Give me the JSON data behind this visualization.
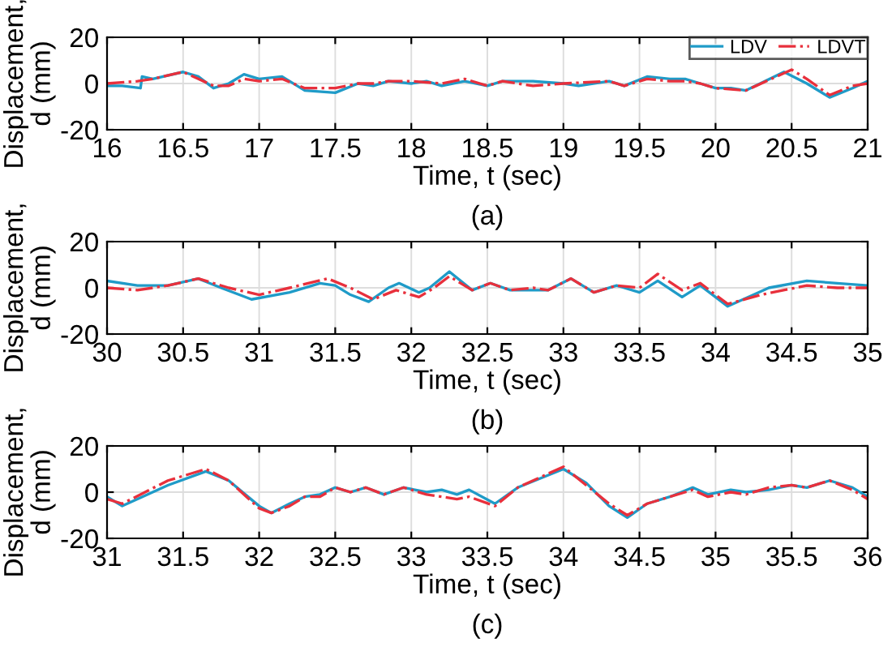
{
  "chart_data": [
    {
      "type": "line",
      "xlabel": "Time, t (sec)",
      "ylabel": "Displacement,\nd (mm)",
      "annotations": [
        "(a)"
      ],
      "xlim": [
        16,
        21
      ],
      "xticks": [
        16,
        16.5,
        17,
        17.5,
        18,
        18.5,
        19,
        19.5,
        20,
        20.5,
        21
      ],
      "ylim": [
        -20,
        20
      ],
      "yticks": [
        -20,
        0,
        20
      ],
      "grid": true,
      "legend": "top right",
      "series": [
        {
          "name": "LDV",
          "color": "#1f9bc8",
          "line_style": "solid",
          "x": [
            16,
            16.1,
            16.22,
            16.23,
            16.3,
            16.5,
            16.6,
            16.7,
            16.8,
            16.9,
            17.0,
            17.15,
            17.3,
            17.5,
            17.65,
            17.75,
            17.85,
            18.0,
            18.1,
            18.2,
            18.35,
            18.5,
            18.6,
            18.8,
            19.0,
            19.1,
            19.3,
            19.4,
            19.55,
            19.7,
            19.8,
            19.9,
            20.0,
            20.1,
            20.2,
            20.45,
            20.6,
            20.75,
            20.9,
            21
          ],
          "values": [
            -1,
            -1,
            -2,
            3,
            2,
            5,
            3,
            -2,
            0,
            4,
            2,
            3,
            -3,
            -4,
            0,
            -1,
            1,
            0,
            1,
            -1,
            1,
            -1,
            1,
            1,
            0,
            -1,
            1,
            -1,
            3,
            2,
            2,
            0,
            -2,
            -2,
            -3,
            5,
            0,
            -6,
            -2,
            1
          ]
        },
        {
          "name": "LDVT",
          "color": "#e8303c",
          "line_style": "dashdot",
          "x": [
            16,
            16.2,
            16.3,
            16.5,
            16.6,
            16.7,
            16.8,
            16.9,
            17.0,
            17.15,
            17.3,
            17.5,
            17.65,
            17.75,
            17.85,
            18.0,
            18.2,
            18.35,
            18.5,
            18.6,
            18.8,
            19.0,
            19.3,
            19.4,
            19.55,
            19.7,
            19.8,
            19.9,
            20.0,
            20.2,
            20.5,
            20.6,
            20.75,
            20.9,
            21
          ],
          "values": [
            0,
            1,
            2,
            5,
            2,
            -1,
            -1,
            2,
            1,
            2,
            -2,
            -2,
            0,
            0,
            1,
            1,
            0,
            2,
            -1,
            1,
            -1,
            0,
            1,
            -1,
            2,
            1,
            1,
            0,
            -2,
            -3,
            6,
            2,
            -5,
            -1,
            0
          ]
        }
      ]
    },
    {
      "type": "line",
      "xlabel": "Time, t (sec)",
      "ylabel": "Displacement,\nd (mm)",
      "annotations": [
        "(b)"
      ],
      "xlim": [
        30,
        35
      ],
      "xticks": [
        30,
        30.5,
        31,
        31.5,
        32,
        32.5,
        33,
        33.5,
        34,
        34.5,
        35
      ],
      "ylim": [
        -20,
        20
      ],
      "yticks": [
        -20,
        0,
        20
      ],
      "grid": true,
      "series": [
        {
          "color": "#1f9bc8",
          "line_style": "solid",
          "x": [
            30,
            30.2,
            30.4,
            30.6,
            30.75,
            30.95,
            31.2,
            31.4,
            31.5,
            31.6,
            31.72,
            31.85,
            31.92,
            32.05,
            32.12,
            32.25,
            32.4,
            32.52,
            32.65,
            32.8,
            32.9,
            33.05,
            33.2,
            33.35,
            33.5,
            33.62,
            33.78,
            33.9,
            34.08,
            34.25,
            34.35,
            34.6,
            34.8,
            35
          ],
          "values": [
            3,
            1,
            1,
            4,
            0,
            -5,
            -2,
            2,
            1,
            -3,
            -6,
            0,
            2,
            -2,
            0,
            7,
            -1,
            2,
            -1,
            -1,
            -1,
            4,
            -2,
            1,
            -2,
            3,
            -4,
            1,
            -8,
            -3,
            0,
            3,
            2,
            1
          ]
        },
        {
          "color": "#e8303c",
          "line_style": "dashdot",
          "x": [
            30,
            30.2,
            30.4,
            30.6,
            30.8,
            31.0,
            31.2,
            31.45,
            31.6,
            31.75,
            31.9,
            32.05,
            32.15,
            32.25,
            32.4,
            32.52,
            32.65,
            32.8,
            32.9,
            33.05,
            33.2,
            33.35,
            33.5,
            33.62,
            33.78,
            33.9,
            34.08,
            34.3,
            34.6,
            34.8,
            35
          ],
          "values": [
            0,
            -1,
            1,
            4,
            0,
            -3,
            0,
            4,
            0,
            -5,
            -1,
            -4,
            0,
            5,
            -1,
            2,
            -1,
            0,
            -1,
            4,
            -2,
            1,
            0,
            6,
            -1,
            2,
            -7,
            -3,
            1,
            0,
            0
          ]
        }
      ]
    },
    {
      "type": "line",
      "xlabel": "Time, t (sec)",
      "ylabel": "Displacement,\nd (mm)",
      "annotations": [
        "(c)"
      ],
      "xlim": [
        31,
        36
      ],
      "xticks": [
        31,
        31.5,
        32,
        32.5,
        33,
        33.5,
        34,
        34.5,
        35,
        35.5,
        36
      ],
      "ylim": [
        -20,
        20
      ],
      "yticks": [
        -20,
        0,
        20
      ],
      "grid": true,
      "series": [
        {
          "color": "#1f9bc8",
          "line_style": "solid",
          "x": [
            31,
            31.1,
            31.4,
            31.65,
            31.8,
            32.0,
            32.08,
            32.2,
            32.3,
            32.4,
            32.5,
            32.6,
            32.7,
            32.82,
            32.95,
            33.1,
            33.2,
            33.3,
            33.38,
            33.55,
            33.7,
            34.0,
            34.15,
            34.3,
            34.42,
            34.55,
            34.7,
            34.85,
            34.95,
            35.1,
            35.2,
            35.35,
            35.5,
            35.6,
            35.75,
            35.9,
            36
          ],
          "values": [
            -2,
            -6,
            3,
            9,
            5,
            -6,
            -9,
            -5,
            -2,
            -1,
            2,
            0,
            2,
            -1,
            2,
            0,
            1,
            -1,
            1,
            -5,
            2,
            10,
            4,
            -6,
            -11,
            -5,
            -2,
            2,
            -1,
            1,
            0,
            1,
            3,
            2,
            5,
            2,
            -2
          ]
        },
        {
          "color": "#e8303c",
          "line_style": "dashdot",
          "x": [
            31,
            31.1,
            31.4,
            31.65,
            31.8,
            32.0,
            32.08,
            32.2,
            32.3,
            32.4,
            32.5,
            32.6,
            32.7,
            32.82,
            32.95,
            33.1,
            33.2,
            33.3,
            33.38,
            33.55,
            33.7,
            34.0,
            34.15,
            34.3,
            34.42,
            34.55,
            34.7,
            34.85,
            34.95,
            35.1,
            35.2,
            35.35,
            35.5,
            35.6,
            35.75,
            35.9,
            36
          ],
          "values": [
            -3,
            -5,
            5,
            10,
            5,
            -7,
            -9,
            -6,
            -2,
            -2,
            2,
            0,
            2,
            -1,
            2,
            -1,
            -2,
            -3,
            -2,
            -6,
            2,
            11,
            3,
            -5,
            -10,
            -5,
            -2,
            1,
            -2,
            0,
            -1,
            2,
            3,
            2,
            5,
            1,
            -3
          ]
        }
      ]
    }
  ]
}
